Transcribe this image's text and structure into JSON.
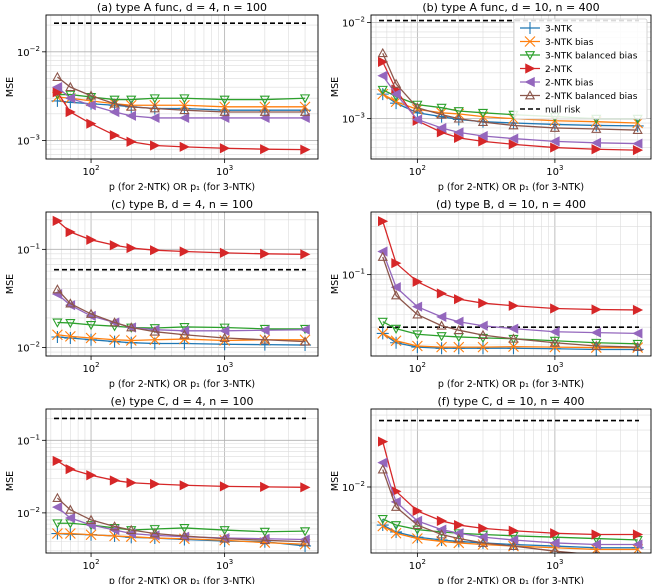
{
  "figure": {
    "ylabel": "MSE",
    "xlabel": "p (for 2-NTK) OR p₁ (for 3-NTK)",
    "legend": [
      "3-NTK",
      "3-NTK bias",
      "3-NTK balanced bias",
      "2-NTK",
      "2-NTK bias",
      "2-NTK balanced bias",
      "null risk"
    ],
    "legend_location": "upper right of panel (b)",
    "colors": {
      "3-NTK": "#1f77b4",
      "3-NTK bias": "#ff7f0e",
      "3-NTK balanced bias": "#2ca02c",
      "2-NTK": "#d62728",
      "2-NTK bias": "#9467bd",
      "2-NTK balanced bias": "#8c564b",
      "null risk": "#000000"
    }
  },
  "chart_data": [
    {
      "type": "line",
      "title": "(a) type A func, d = 4, n = 100",
      "xscale": "log",
      "yscale": "log",
      "xlim": [
        46,
        5000
      ],
      "ylim": [
        0.00062,
        0.026
      ],
      "xticks": [
        {
          "v": 100,
          "label": "10^2"
        },
        {
          "v": 1000,
          "label": "10^3"
        }
      ],
      "yticks": [
        {
          "v": 0.001,
          "label": "10^-3"
        },
        {
          "v": 0.01,
          "label": "10^-2"
        }
      ],
      "x": [
        56,
        70,
        100,
        150,
        200,
        300,
        500,
        1000,
        2000,
        4000
      ],
      "null_risk": 0.021,
      "series": [
        {
          "name": "3-NTK",
          "values": [
            0.0028,
            0.0027,
            0.0026,
            0.0025,
            0.0024,
            0.0023,
            0.0023,
            0.0022,
            0.0022,
            0.0022
          ]
        },
        {
          "name": "3-NTK bias",
          "values": [
            0.0031,
            0.003,
            0.0028,
            0.0026,
            0.0025,
            0.0025,
            0.0025,
            0.0024,
            0.0024,
            0.0024
          ]
        },
        {
          "name": "3-NTK balanced bias",
          "values": [
            0.0033,
            0.0033,
            0.0031,
            0.0029,
            0.0029,
            0.003,
            0.003,
            0.0029,
            0.0029,
            0.003
          ]
        },
        {
          "name": "2-NTK",
          "values": [
            0.0035,
            0.0021,
            0.00155,
            0.00115,
            0.00097,
            0.00088,
            0.00085,
            0.00082,
            0.0008,
            0.00079
          ]
        },
        {
          "name": "2-NTK bias",
          "values": [
            0.004,
            0.003,
            0.0025,
            0.0021,
            0.0019,
            0.0018,
            0.0018,
            0.0018,
            0.0018,
            0.0018
          ]
        },
        {
          "name": "2-NTK balanced bias",
          "values": [
            0.0052,
            0.004,
            0.0032,
            0.0026,
            0.0024,
            0.0023,
            0.0022,
            0.0021,
            0.0021,
            0.0021
          ]
        }
      ]
    },
    {
      "type": "line",
      "title": "(b) type A func, d = 10, n = 400",
      "xscale": "log",
      "yscale": "log",
      "xlim": [
        46,
        5000
      ],
      "ylim": [
        0.00038,
        0.012
      ],
      "xticks": [
        {
          "v": 100,
          "label": "10^2"
        },
        {
          "v": 1000,
          "label": "10^3"
        }
      ],
      "yticks": [
        {
          "v": 0.001,
          "label": "10^-3"
        },
        {
          "v": 0.01,
          "label": "10^-2"
        }
      ],
      "x": [
        56,
        70,
        100,
        150,
        200,
        300,
        500,
        1000,
        2000,
        4000
      ],
      "null_risk": 0.0105,
      "series": [
        {
          "name": "3-NTK",
          "values": [
            0.0018,
            0.00145,
            0.00115,
            0.00105,
            0.00098,
            0.00093,
            0.0009,
            0.00087,
            0.00085,
            0.00084
          ]
        },
        {
          "name": "3-NTK bias",
          "values": [
            0.0018,
            0.0015,
            0.00125,
            0.00115,
            0.00112,
            0.00105,
            0.001,
            0.00095,
            0.00093,
            0.0009
          ]
        },
        {
          "name": "3-NTK balanced bias",
          "values": [
            0.002,
            0.0017,
            0.0014,
            0.0013,
            0.0012,
            0.00115,
            0.0011,
            0.00105,
            0.001,
            0.001
          ]
        },
        {
          "name": "2-NTK",
          "values": [
            0.0039,
            0.002,
            0.00095,
            0.00072,
            0.00063,
            0.00058,
            0.00054,
            0.0005,
            0.00048,
            0.00047
          ]
        },
        {
          "name": "2-NTK bias",
          "values": [
            0.0028,
            0.0018,
            0.00098,
            0.0008,
            0.00072,
            0.00066,
            0.00062,
            0.00058,
            0.00056,
            0.00055
          ]
        },
        {
          "name": "2-NTK balanced bias",
          "values": [
            0.0048,
            0.0023,
            0.0013,
            0.0011,
            0.001,
            0.00092,
            0.00085,
            0.0008,
            0.00078,
            0.00076
          ]
        }
      ]
    },
    {
      "type": "line",
      "title": "(c) type B, d = 4, n = 100",
      "xscale": "log",
      "yscale": "log",
      "xlim": [
        46,
        5000
      ],
      "ylim": [
        0.0082,
        0.24
      ],
      "xticks": [
        {
          "v": 100,
          "label": "10^2"
        },
        {
          "v": 1000,
          "label": "10^3"
        }
      ],
      "yticks": [
        {
          "v": 0.01,
          "label": "10^-2"
        },
        {
          "v": 0.1,
          "label": "10^-1"
        }
      ],
      "x": [
        56,
        70,
        100,
        150,
        200,
        300,
        500,
        1000,
        2000,
        4000
      ],
      "null_risk": 0.062,
      "series": [
        {
          "name": "3-NTK",
          "values": [
            0.0128,
            0.0125,
            0.012,
            0.0115,
            0.0112,
            0.011,
            0.011,
            0.0108,
            0.0107,
            0.0106
          ]
        },
        {
          "name": "3-NTK bias",
          "values": [
            0.0135,
            0.013,
            0.0125,
            0.012,
            0.0118,
            0.012,
            0.0122,
            0.0118,
            0.012,
            0.012
          ]
        },
        {
          "name": "3-NTK balanced bias",
          "values": [
            0.018,
            0.0178,
            0.017,
            0.0165,
            0.016,
            0.0158,
            0.0162,
            0.016,
            0.0155,
            0.0155
          ]
        },
        {
          "name": "2-NTK",
          "values": [
            0.195,
            0.15,
            0.125,
            0.11,
            0.103,
            0.098,
            0.095,
            0.092,
            0.09,
            0.089
          ]
        },
        {
          "name": "2-NTK bias",
          "values": [
            0.035,
            0.027,
            0.021,
            0.018,
            0.016,
            0.0152,
            0.0148,
            0.0148,
            0.015,
            0.0152
          ]
        },
        {
          "name": "2-NTK balanced bias",
          "values": [
            0.039,
            0.028,
            0.022,
            0.018,
            0.016,
            0.0145,
            0.0135,
            0.0125,
            0.012,
            0.0115
          ]
        }
      ]
    },
    {
      "type": "line",
      "title": "(d) type B, d = 10, n = 400",
      "xscale": "log",
      "yscale": "log",
      "xlim": [
        46,
        5000
      ],
      "ylim": [
        0.0155,
        0.42
      ],
      "xticks": [
        {
          "v": 100,
          "label": "10^2"
        },
        {
          "v": 1000,
          "label": "10^3"
        }
      ],
      "yticks": [
        {
          "v": 0.1,
          "label": "10^-1"
        }
      ],
      "x": [
        56,
        70,
        100,
        150,
        200,
        300,
        500,
        1000,
        2000,
        4000
      ],
      "null_risk": 0.03,
      "series": [
        {
          "name": "3-NTK",
          "values": [
            0.026,
            0.021,
            0.019,
            0.0185,
            0.0185,
            0.0185,
            0.0185,
            0.0183,
            0.018,
            0.018
          ]
        },
        {
          "name": "3-NTK bias",
          "values": [
            0.026,
            0.022,
            0.0195,
            0.019,
            0.019,
            0.019,
            0.0192,
            0.019,
            0.0188,
            0.0188
          ]
        },
        {
          "name": "3-NTK balanced bias",
          "values": [
            0.034,
            0.029,
            0.0255,
            0.0245,
            0.024,
            0.0235,
            0.023,
            0.022,
            0.021,
            0.0205
          ]
        },
        {
          "name": "2-NTK",
          "values": [
            0.34,
            0.13,
            0.085,
            0.065,
            0.057,
            0.052,
            0.049,
            0.046,
            0.045,
            0.0445
          ]
        },
        {
          "name": "2-NTK bias",
          "values": [
            0.17,
            0.075,
            0.048,
            0.038,
            0.034,
            0.031,
            0.029,
            0.027,
            0.0265,
            0.026
          ]
        },
        {
          "name": "2-NTK balanced bias",
          "values": [
            0.15,
            0.062,
            0.04,
            0.031,
            0.028,
            0.025,
            0.023,
            0.021,
            0.0195,
            0.019
          ]
        }
      ]
    },
    {
      "type": "line",
      "title": "(e) type C, d = 4, n = 100",
      "xscale": "log",
      "yscale": "log",
      "xlim": [
        46,
        5000
      ],
      "ylim": [
        0.0028,
        0.27
      ],
      "xticks": [
        {
          "v": 100,
          "label": "10^2"
        },
        {
          "v": 1000,
          "label": "10^3"
        }
      ],
      "yticks": [
        {
          "v": 0.01,
          "label": "10^-2"
        },
        {
          "v": 0.1,
          "label": "10^-1"
        }
      ],
      "x": [
        56,
        70,
        100,
        150,
        200,
        300,
        500,
        1000,
        2000,
        4000
      ],
      "null_risk": 0.2,
      "series": [
        {
          "name": "3-NTK",
          "values": [
            0.0052,
            0.0051,
            0.005,
            0.0048,
            0.0046,
            0.0045,
            0.0043,
            0.0041,
            0.004,
            0.0035
          ]
        },
        {
          "name": "3-NTK bias",
          "values": [
            0.0052,
            0.0052,
            0.005,
            0.0048,
            0.0047,
            0.0045,
            0.0044,
            0.0042,
            0.0039,
            0.0037
          ]
        },
        {
          "name": "3-NTK balanced bias",
          "values": [
            0.0072,
            0.0072,
            0.0068,
            0.0062,
            0.0058,
            0.006,
            0.0062,
            0.0058,
            0.0055,
            0.0056
          ]
        },
        {
          "name": "2-NTK",
          "values": [
            0.052,
            0.04,
            0.033,
            0.028,
            0.026,
            0.025,
            0.024,
            0.0232,
            0.0228,
            0.0225
          ]
        },
        {
          "name": "2-NTK bias",
          "values": [
            0.012,
            0.0085,
            0.0068,
            0.0058,
            0.0052,
            0.0049,
            0.0047,
            0.0045,
            0.0044,
            0.0043
          ]
        },
        {
          "name": "2-NTK balanced bias",
          "values": [
            0.016,
            0.011,
            0.008,
            0.0065,
            0.0058,
            0.0052,
            0.0048,
            0.0044,
            0.0042,
            0.004
          ]
        }
      ]
    },
    {
      "type": "line",
      "title": "(f) type C, d = 10, n = 400",
      "xscale": "log",
      "yscale": "log",
      "xlim": [
        46,
        5000
      ],
      "ylim": [
        0.0028,
        0.045
      ],
      "xticks": [
        {
          "v": 100,
          "label": "10^2"
        },
        {
          "v": 1000,
          "label": "10^3"
        }
      ],
      "yticks": [
        {
          "v": 0.01,
          "label": "10^-2"
        }
      ],
      "x": [
        56,
        70,
        100,
        150,
        200,
        300,
        500,
        1000,
        2000,
        4000
      ],
      "null_risk": 0.036,
      "series": [
        {
          "name": "3-NTK",
          "values": [
            0.0048,
            0.0042,
            0.0038,
            0.0036,
            0.0035,
            0.0034,
            0.0033,
            0.0032,
            0.0031,
            0.0031
          ]
        },
        {
          "name": "3-NTK bias",
          "values": [
            0.0047,
            0.0041,
            0.0037,
            0.0035,
            0.0034,
            0.0033,
            0.0032,
            0.0031,
            0.003,
            0.003
          ]
        },
        {
          "name": "3-NTK balanced bias",
          "values": [
            0.0054,
            0.0048,
            0.0044,
            0.0042,
            0.0041,
            0.004,
            0.0039,
            0.0038,
            0.0037,
            0.0036
          ]
        },
        {
          "name": "2-NTK",
          "values": [
            0.024,
            0.0092,
            0.0063,
            0.0052,
            0.0048,
            0.0045,
            0.0043,
            0.0041,
            0.004,
            0.004
          ]
        },
        {
          "name": "2-NTK bias",
          "values": [
            0.016,
            0.0075,
            0.0052,
            0.0044,
            0.0041,
            0.0038,
            0.0036,
            0.0034,
            0.0033,
            0.0033
          ]
        },
        {
          "name": "2-NTK balanced bias",
          "values": [
            0.014,
            0.0068,
            0.0048,
            0.004,
            0.0037,
            0.0034,
            0.0032,
            0.0029,
            0.0027,
            0.0026
          ]
        }
      ]
    }
  ]
}
